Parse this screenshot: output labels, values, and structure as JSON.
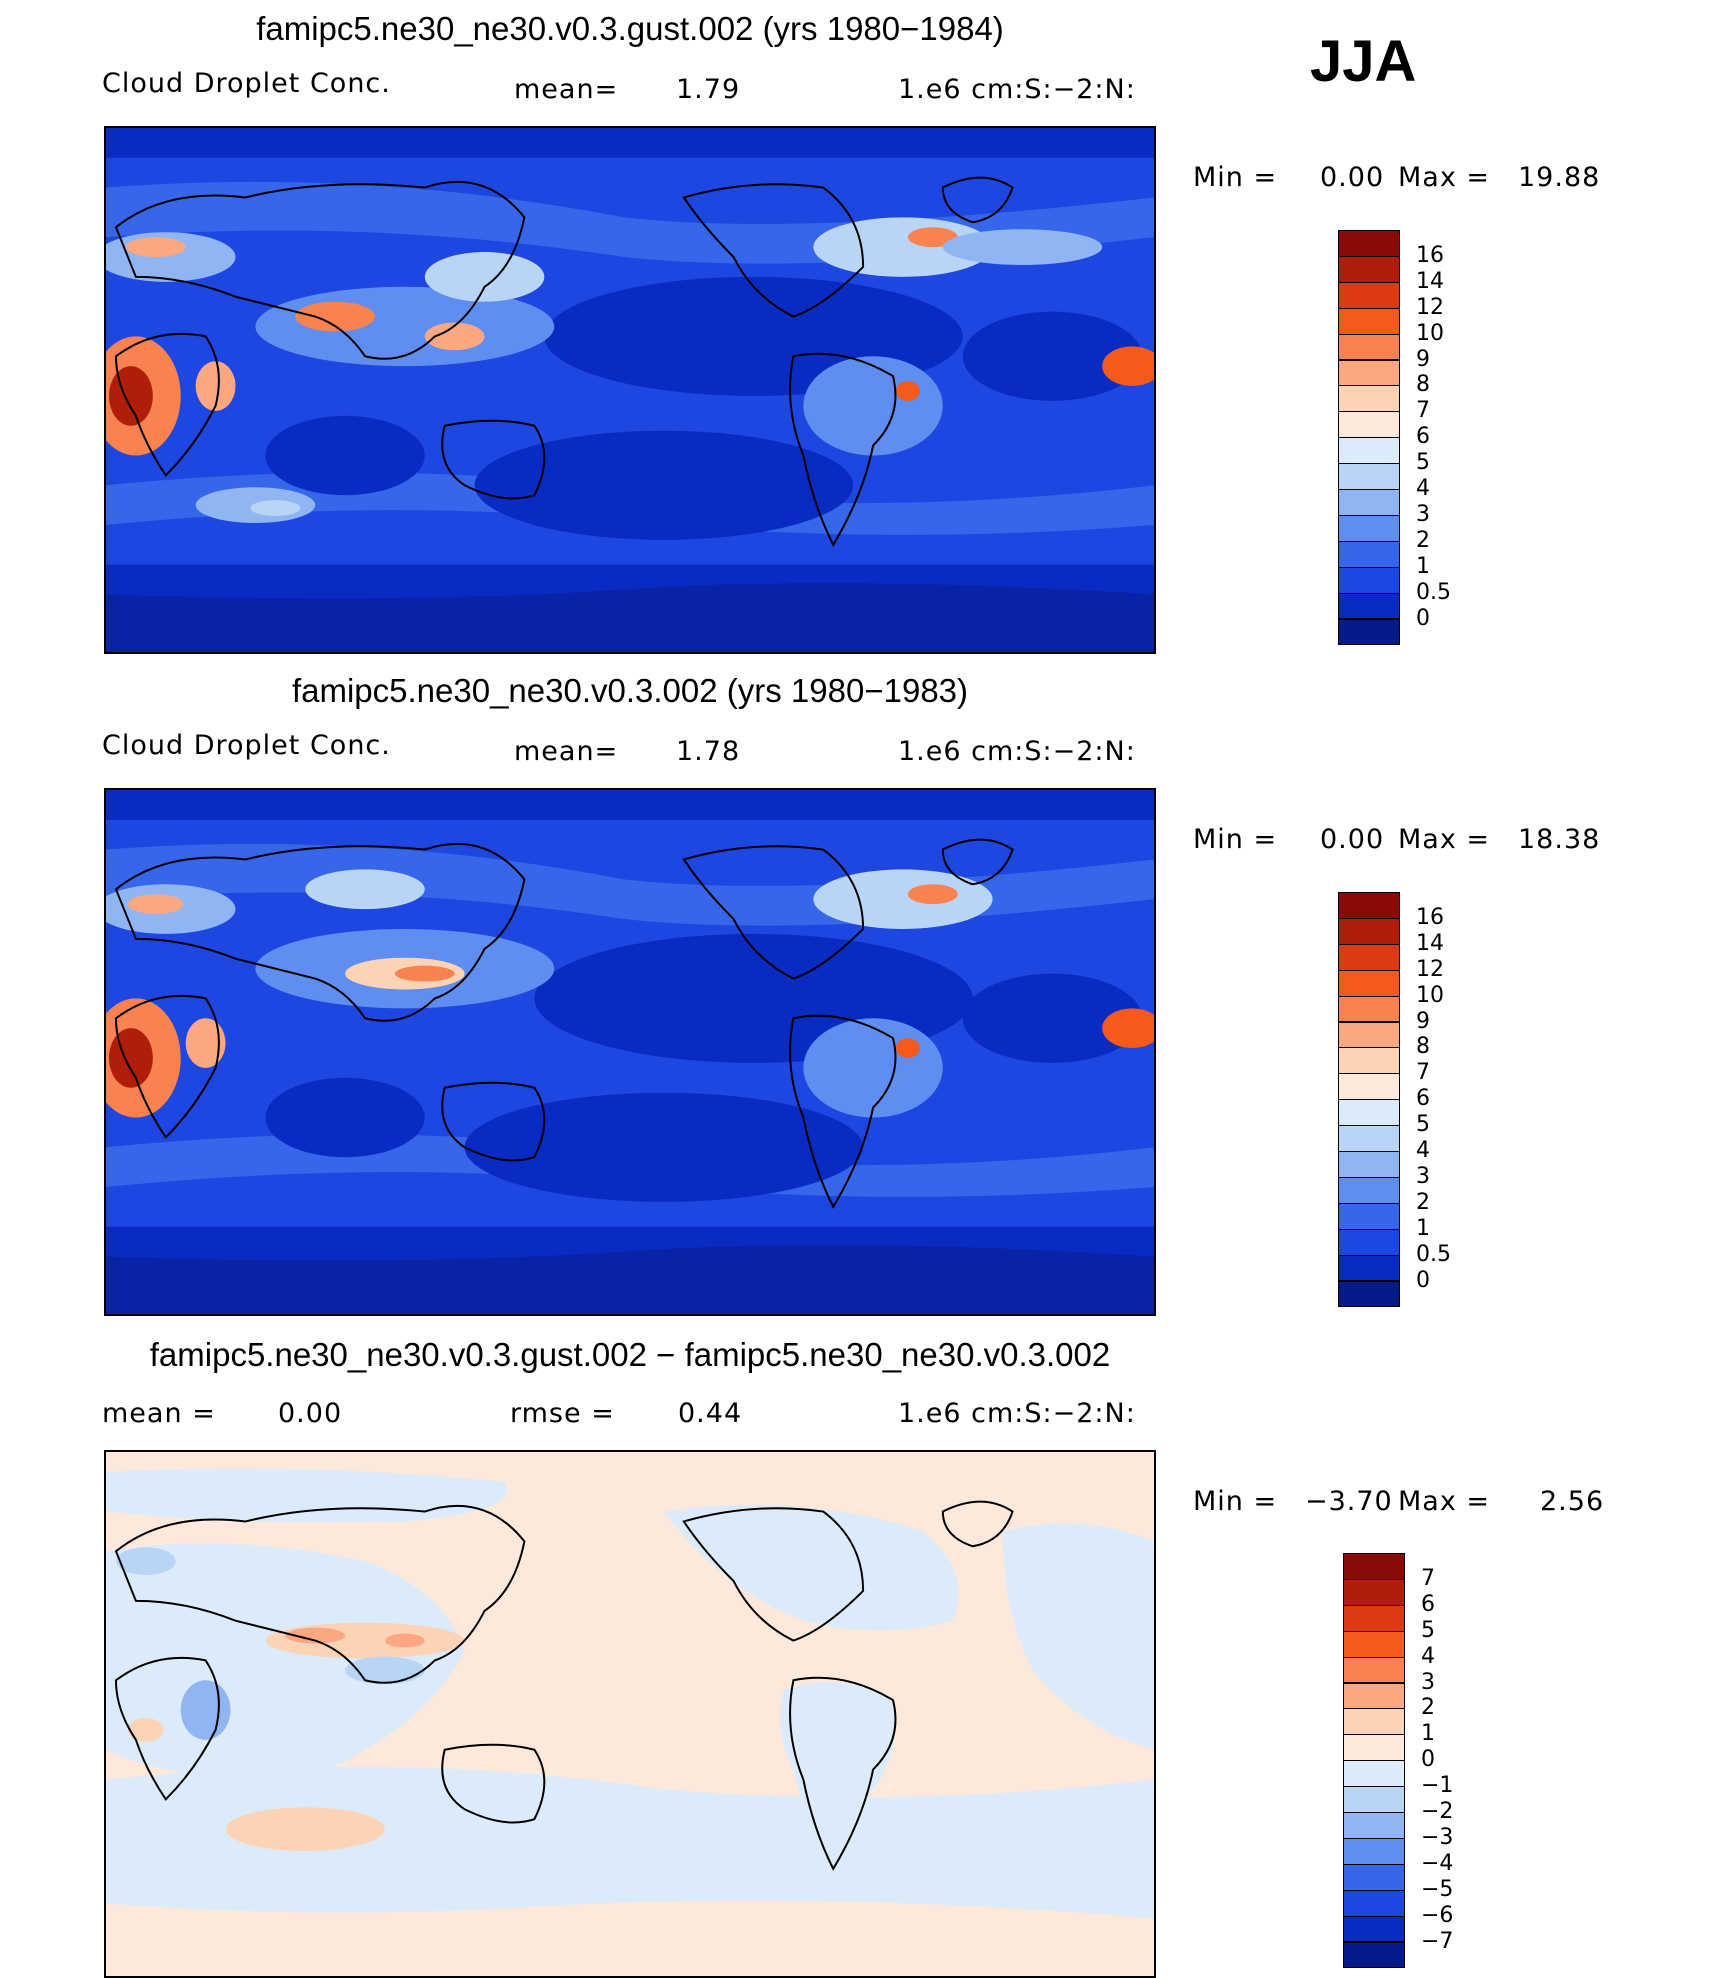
{
  "season": "JJA",
  "panels": [
    {
      "title": "famipc5.ne30_ne30.v0.3.gust.002 (yrs 1980-1984)",
      "left_label": "Cloud Droplet Conc.",
      "center_label": "mean=",
      "center_value": "1.79",
      "units": "1.e6 cm:S:-2:N:",
      "min_label": "Min =",
      "min_value": "0.00",
      "max_label": "Max =",
      "max_value": "19.88",
      "ticks": [
        "16",
        "14",
        "12",
        "10",
        "9",
        "8",
        "7",
        "6",
        "5",
        "4",
        "3",
        "2",
        "1",
        "0.5",
        "0"
      ],
      "colors": [
        "#8a0a05",
        "#b01e0a",
        "#dc3a12",
        "#f45a1c",
        "#f88250",
        "#fba882",
        "#fdd3b6",
        "#fde9dc",
        "#dcebfa",
        "#b9d5f6",
        "#8fb6f3",
        "#5f8ef0",
        "#3666ea",
        "#1e46e0",
        "#0a2bc2",
        "#061b8a"
      ]
    },
    {
      "title": "famipc5.ne30_ne30.v0.3.002 (yrs 1980-1983)",
      "left_label": "Cloud Droplet Conc.",
      "center_label": "mean=",
      "center_value": "1.78",
      "units": "1.e6 cm:S:-2:N:",
      "min_label": "Min =",
      "min_value": "0.00",
      "max_label": "Max =",
      "max_value": "18.38",
      "ticks": [
        "16",
        "14",
        "12",
        "10",
        "9",
        "8",
        "7",
        "6",
        "5",
        "4",
        "3",
        "2",
        "1",
        "0.5",
        "0"
      ],
      "colors": [
        "#8a0a05",
        "#b01e0a",
        "#dc3a12",
        "#f45a1c",
        "#f88250",
        "#fba882",
        "#fdd3b6",
        "#fde9dc",
        "#dcebfa",
        "#b9d5f6",
        "#8fb6f3",
        "#5f8ef0",
        "#3666ea",
        "#1e46e0",
        "#0a2bc2",
        "#061b8a"
      ]
    },
    {
      "title": "famipc5.ne30_ne30.v0.3.gust.002 - famipc5.ne30_ne30.v0.3.002",
      "left_label": "mean =",
      "left_value": "0.00",
      "center_label": "rmse =",
      "center_value": "0.44",
      "units": "1.e6 cm:S:-2:N:",
      "min_label": "Min =",
      "min_value": "-3.70",
      "max_label": "Max =",
      "max_value": "2.56",
      "ticks": [
        "7",
        "6",
        "5",
        "4",
        "3",
        "2",
        "1",
        "0",
        "-1",
        "-2",
        "-3",
        "-4",
        "-5",
        "-6",
        "-7"
      ],
      "colors": [
        "#8a0a05",
        "#b01e0a",
        "#dc3a12",
        "#f45a1c",
        "#f88250",
        "#fba882",
        "#fdd3b6",
        "#fde9dc",
        "#dcebfa",
        "#b9d5f6",
        "#8fb6f3",
        "#5f8ef0",
        "#3666ea",
        "#1e46e0",
        "#0a2bc2",
        "#061b8a"
      ]
    }
  ]
}
